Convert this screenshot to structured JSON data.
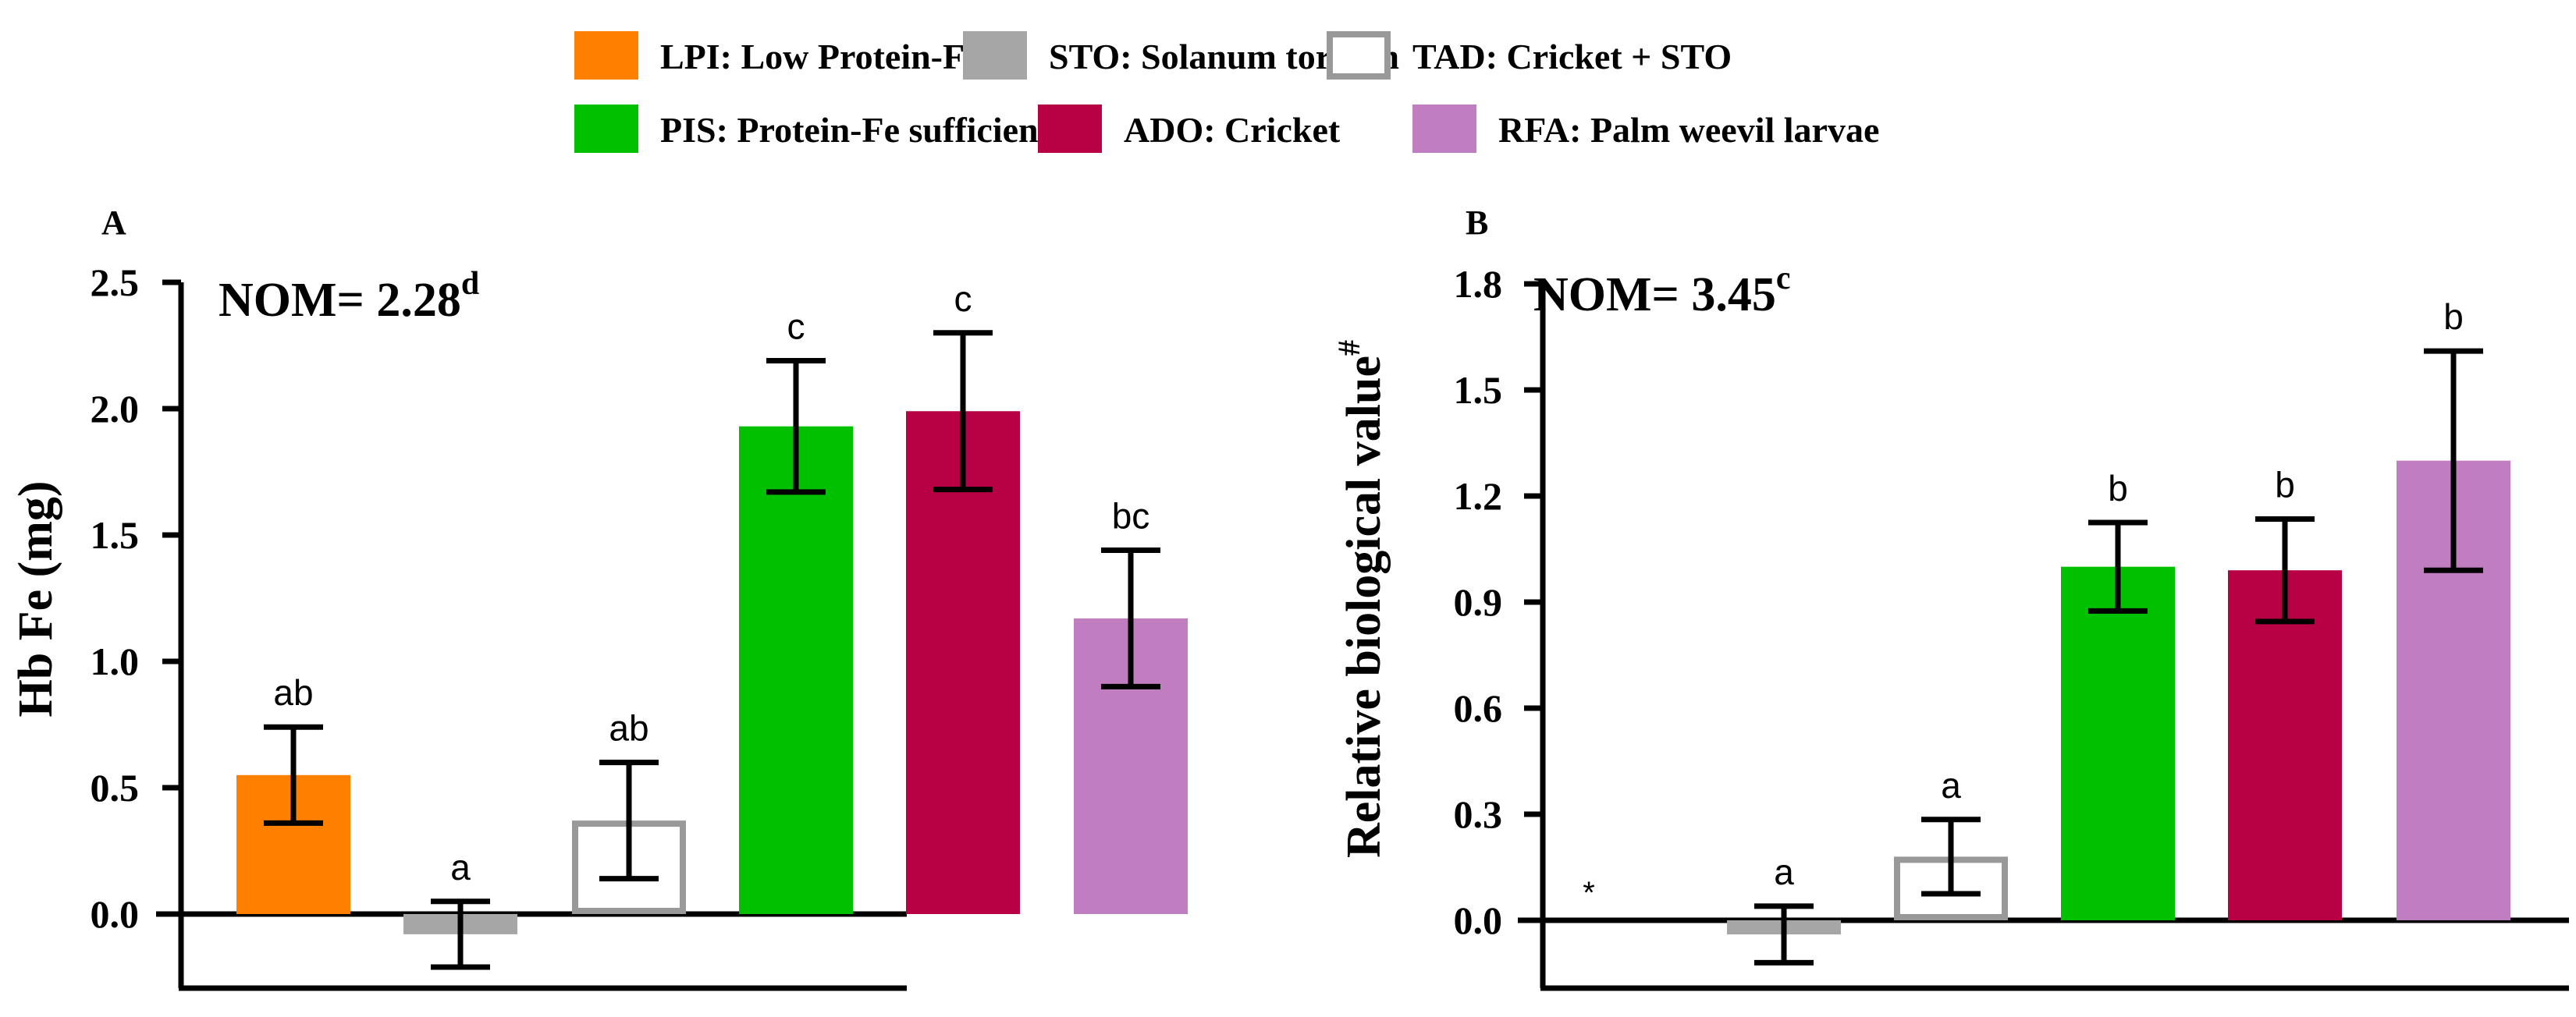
{
  "colors": {
    "LPI": "#ff8000",
    "STO": "#a6a6a6",
    "TAD_outline": "#999999",
    "PIS": "#00c000",
    "ADO": "#b80045",
    "RFA": "#c07dc0",
    "axis": "#000000"
  },
  "legend": {
    "items": [
      {
        "key": "LPI",
        "label": "LPI: Low Protein-Fe",
        "style": "fill"
      },
      {
        "key": "STO",
        "label": "STO: Solanum torvum",
        "style": "fill"
      },
      {
        "key": "TAD",
        "label": "TAD: Cricket + STO",
        "style": "outline"
      },
      {
        "key": "PIS",
        "label": "PIS: Protein-Fe sufficient",
        "style": "fill"
      },
      {
        "key": "ADO",
        "label": "ADO: Cricket",
        "style": "fill"
      },
      {
        "key": "RFA",
        "label": "RFA: Palm weevil larvae",
        "style": "fill"
      }
    ]
  },
  "chart_data": [
    {
      "panel": "A",
      "type": "bar",
      "ylabel": "Hb Fe (mg)",
      "annotation": {
        "text": "NOM= 2.28",
        "superscript": "d"
      },
      "ylim": [
        -0.3,
        2.5
      ],
      "yticks": [
        0.0,
        0.5,
        1.0,
        1.5,
        2.0,
        2.5
      ],
      "ytick_labels": [
        "0.0",
        "0.5",
        "1.0",
        "1.5",
        "2.0",
        "2.5"
      ],
      "categories": [
        "LPI",
        "STO",
        "TAD",
        "PIS",
        "ADO",
        "RFA"
      ],
      "values": [
        0.55,
        -0.08,
        0.37,
        1.93,
        1.99,
        1.17
      ],
      "errors": [
        0.19,
        0.13,
        0.23,
        0.26,
        0.31,
        0.27
      ],
      "significance": [
        "ab",
        "a",
        "ab",
        "c",
        "c",
        "bc"
      ],
      "missing_markers": [
        "",
        "",
        "",
        "",
        "",
        ""
      ]
    },
    {
      "panel": "B",
      "type": "bar",
      "ylabel": "Relative biological value",
      "ylabel_superscript": "#",
      "annotation": {
        "text": "NOM= 3.45",
        "superscript": "c"
      },
      "ylim": [
        -0.2,
        1.8
      ],
      "yticks": [
        0.0,
        0.3,
        0.6,
        0.9,
        1.2,
        1.5,
        1.8
      ],
      "ytick_labels": [
        "0.0",
        "0.3",
        "0.6",
        "0.9",
        "1.2",
        "1.5",
        "1.8"
      ],
      "categories": [
        "LPI",
        "STO",
        "TAD",
        "PIS",
        "ADO",
        "RFA"
      ],
      "values": [
        null,
        -0.04,
        0.18,
        1.0,
        0.99,
        1.3
      ],
      "errors": [
        null,
        0.08,
        0.105,
        0.125,
        0.145,
        0.31
      ],
      "significance": [
        "",
        "a",
        "a",
        "b",
        "b",
        "b"
      ],
      "missing_markers": [
        "*",
        "",
        "",
        "",
        "",
        ""
      ]
    }
  ]
}
